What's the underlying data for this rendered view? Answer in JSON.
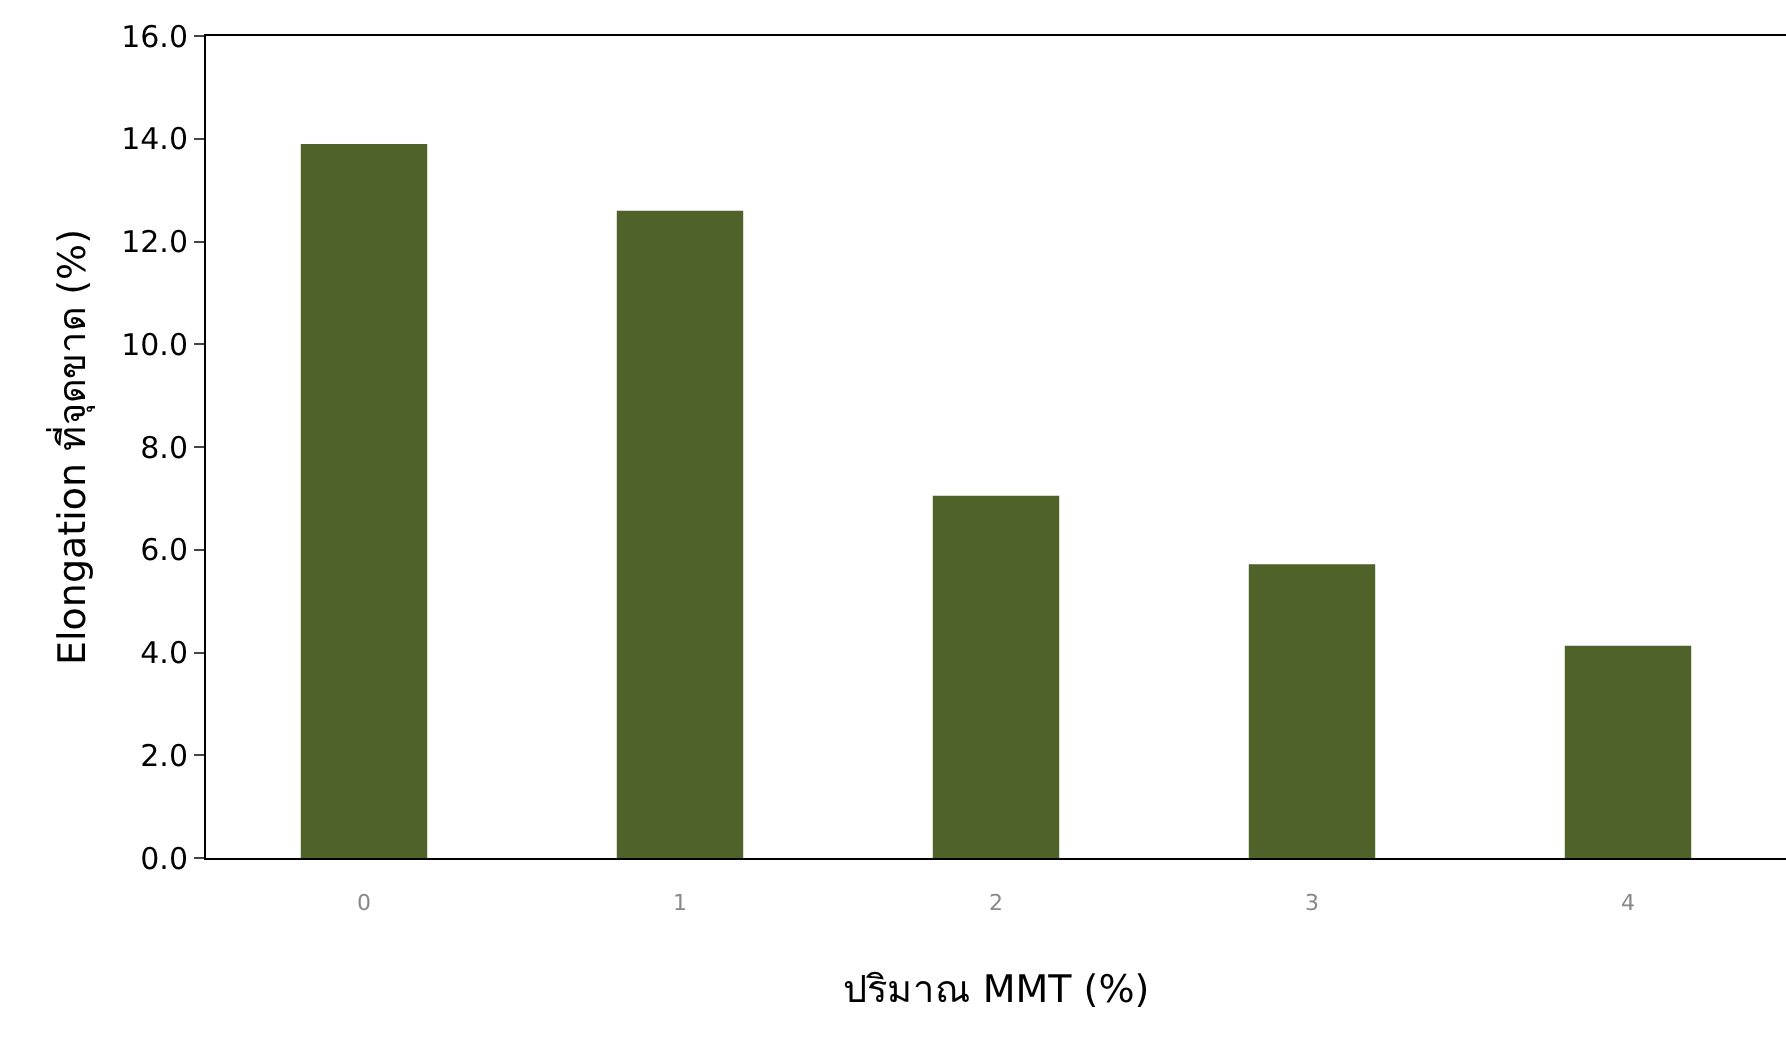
{
  "chart_data": {
    "type": "bar",
    "xlabel": "ปริมาณ MMT (%)",
    "ylabel": "Elongation ที่จุดขาด (%)",
    "categories": [
      "0",
      "1",
      "2",
      "3",
      "4"
    ],
    "values": [
      13.9,
      12.6,
      7.05,
      5.72,
      4.13
    ],
    "color": "#4f622a",
    "ylim": [
      0,
      16
    ],
    "yticks": [
      {
        "value": 0,
        "label": "0.0"
      },
      {
        "value": 2,
        "label": "2.0"
      },
      {
        "value": 4,
        "label": "4.0"
      },
      {
        "value": 6,
        "label": "6.0"
      },
      {
        "value": 8,
        "label": "8.0"
      },
      {
        "value": 10,
        "label": "10.0"
      },
      {
        "value": 12,
        "label": "12.0"
      },
      {
        "value": 14,
        "label": "14.0"
      },
      {
        "value": 16,
        "label": "16.0"
      }
    ],
    "grid": false
  }
}
